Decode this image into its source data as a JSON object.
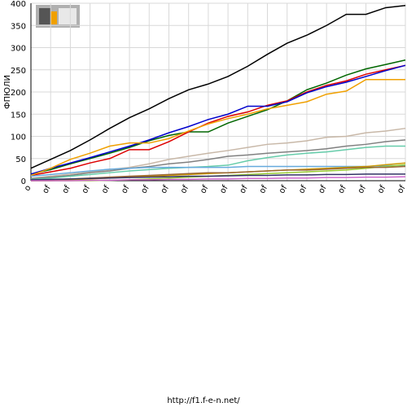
{
  "chart_data": {
    "type": "line",
    "y_label": "ФПЮЛИ",
    "footer": "http://f1.f-e-n.net/",
    "categories": [
      "о",
      "of",
      "of",
      "of",
      "of",
      "of",
      "of",
      "of",
      "of",
      "of",
      "of",
      "of",
      "of",
      "of",
      "of",
      "of",
      "of",
      "of",
      "of",
      "of"
    ],
    "ylim": [
      0,
      400
    ],
    "yticks": [
      0,
      50,
      100,
      150,
      200,
      250,
      300,
      350,
      400
    ],
    "grid": true,
    "series": [
      {
        "color": "#000000",
        "values": [
          28,
          48,
          68,
          92,
          118,
          142,
          162,
          185,
          205,
          218,
          235,
          258,
          285,
          310,
          328,
          350,
          375,
          375,
          390,
          395
        ]
      },
      {
        "color": "#006600",
        "values": [
          15,
          25,
          38,
          50,
          62,
          75,
          90,
          102,
          110,
          110,
          130,
          145,
          160,
          180,
          205,
          220,
          238,
          252,
          262,
          272
        ]
      },
      {
        "color": "#dd0000",
        "values": [
          12,
          20,
          28,
          40,
          50,
          70,
          70,
          88,
          110,
          130,
          145,
          155,
          170,
          180,
          200,
          215,
          225,
          240,
          250,
          260
        ]
      },
      {
        "color": "#0000cc",
        "values": [
          15,
          28,
          40,
          52,
          65,
          78,
          92,
          108,
          122,
          138,
          150,
          168,
          168,
          178,
          198,
          212,
          222,
          235,
          248,
          260
        ]
      },
      {
        "color": "#f0a000",
        "values": [
          12,
          28,
          48,
          62,
          78,
          85,
          85,
          95,
          112,
          128,
          140,
          150,
          162,
          170,
          178,
          195,
          202,
          228,
          228,
          228
        ]
      },
      {
        "color": "#c8b8a8",
        "values": [
          5,
          10,
          15,
          20,
          25,
          30,
          38,
          48,
          55,
          62,
          68,
          75,
          82,
          85,
          90,
          98,
          100,
          108,
          112,
          118
        ]
      },
      {
        "color": "#808080",
        "values": [
          5,
          8,
          12,
          18,
          22,
          28,
          32,
          38,
          42,
          48,
          55,
          58,
          62,
          65,
          68,
          72,
          78,
          82,
          88,
          92
        ]
      },
      {
        "color": "#66ccaa",
        "values": [
          3,
          6,
          10,
          14,
          18,
          22,
          25,
          28,
          30,
          32,
          35,
          45,
          52,
          58,
          62,
          65,
          70,
          75,
          78,
          78
        ]
      },
      {
        "color": "#66aadd",
        "values": [
          10,
          14,
          18,
          22,
          26,
          28,
          30,
          30,
          30,
          30,
          30,
          32,
          32,
          32,
          32,
          32,
          32,
          32,
          34,
          34
        ]
      },
      {
        "color": "#cc9900",
        "values": [
          0,
          0,
          2,
          4,
          6,
          8,
          10,
          12,
          14,
          16,
          18,
          20,
          22,
          24,
          26,
          28,
          30,
          32,
          36,
          40
        ]
      },
      {
        "color": "#99cc33",
        "values": [
          0,
          0,
          0,
          0,
          1,
          2,
          4,
          6,
          8,
          10,
          12,
          14,
          16,
          18,
          20,
          22,
          24,
          28,
          32,
          36
        ]
      },
      {
        "color": "#996633",
        "values": [
          0,
          2,
          4,
          6,
          8,
          10,
          12,
          14,
          16,
          18,
          18,
          20,
          22,
          24,
          24,
          26,
          28,
          30,
          30,
          32
        ]
      },
      {
        "color": "#333366",
        "values": [
          2,
          3,
          4,
          5,
          6,
          7,
          8,
          9,
          10,
          10,
          11,
          12,
          12,
          13,
          13,
          14,
          14,
          15,
          15,
          15
        ]
      },
      {
        "color": "#cc66cc",
        "values": [
          0,
          0,
          0,
          1,
          1,
          2,
          2,
          3,
          3,
          4,
          4,
          5,
          5,
          6,
          6,
          7,
          7,
          8,
          8,
          9
        ]
      }
    ]
  }
}
